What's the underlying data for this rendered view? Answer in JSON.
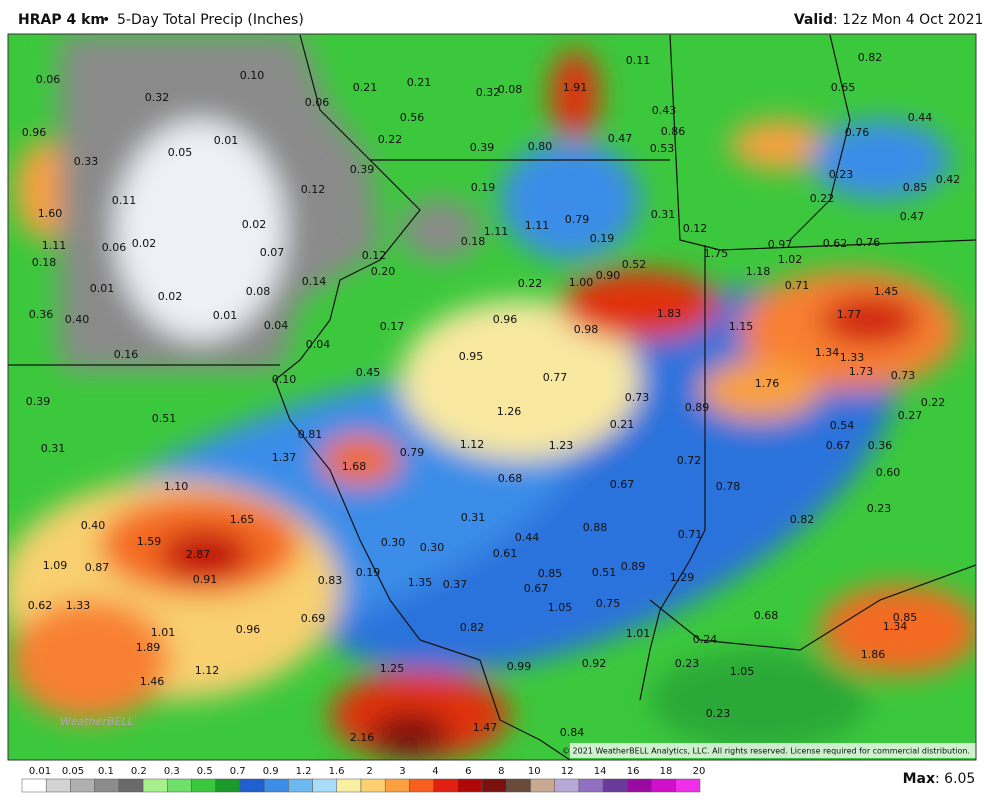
{
  "header": {
    "model": "HRAP 4 km",
    "separator": "•",
    "product": "5-Day Total Precip (Inches)",
    "valid_label": "Valid",
    "valid_time": ": 12z Mon 4 Oct 2021"
  },
  "map": {
    "logo": "WeatherBELL",
    "copyright": "© 2021 WeatherBELL Analytics, LLC. All rights reserved. License required for commercial distribution.",
    "labels": [
      "0.06",
      "0.10",
      "0.32",
      "0.21",
      "0.21",
      "0.32",
      "0.08",
      "1.91",
      "0.11",
      "0.82",
      "0.65",
      "0.06",
      "0.96",
      "0.56",
      "0.22",
      "0.39",
      "0.80",
      "0.47",
      "0.43",
      "0.86",
      "0.53",
      "0.76",
      "0.44",
      "0.01",
      "0.05",
      "0.33",
      "0.39",
      "0.12",
      "0.19",
      "0.23",
      "0.85",
      "0.42",
      "0.22",
      "0.47",
      "0.11",
      "1.60",
      "0.02",
      "1.11",
      "0.79",
      "0.31",
      "0.12",
      "1.11",
      "0.18",
      "0.19",
      "0.06",
      "0.02",
      "1.11",
      "0.07",
      "0.12",
      "0.97",
      "0.62",
      "0.76",
      "1.75",
      "1.02",
      "0.18",
      "0.20",
      "0.52",
      "0.90",
      "1.18",
      "0.01",
      "0.14",
      "0.22",
      "1.00",
      "0.71",
      "1.45",
      "0.02",
      "0.08",
      "0.36",
      "0.40",
      "0.01",
      "0.04",
      "0.17",
      "0.96",
      "0.98",
      "1.83",
      "1.15",
      "1.77",
      "0.04",
      "0.16",
      "0.95",
      "1.34",
      "1.33",
      "1.73",
      "0.45",
      "0.10",
      "0.77",
      "1.76",
      "0.73",
      "0.39",
      "0.73",
      "0.89",
      "0.22",
      "0.51",
      "1.26",
      "0.21",
      "0.27",
      "0.54",
      "0.81",
      "0.31",
      "1.12",
      "1.23",
      "0.67",
      "0.36",
      "1.37",
      "1.68",
      "0.79",
      "0.72",
      "0.68",
      "0.67",
      "0.78",
      "0.60",
      "1.10",
      "0.23",
      "1.65",
      "0.31",
      "0.82",
      "0.40",
      "0.88",
      "0.71",
      "1.59",
      "0.30",
      "0.30",
      "0.44",
      "2.87",
      "0.61",
      "1.09",
      "0.87",
      "0.19",
      "0.85",
      "0.51",
      "0.89",
      "0.91",
      "0.83",
      "1.35",
      "0.37",
      "0.67",
      "1.29",
      "0.62",
      "1.33",
      "1.05",
      "0.75",
      "0.69",
      "0.68",
      "0.85",
      "1.34",
      "0.96",
      "1.01",
      "0.82",
      "1.01",
      "0.24",
      "1.89",
      "0.99",
      "0.92",
      "0.23",
      "1.05",
      "1.86",
      "1.25",
      "1.12",
      "1.46",
      "0.23",
      "1.47",
      "0.84",
      "2.16"
    ]
  },
  "legend": {
    "ticks": [
      "0.01",
      "0.05",
      "0.1",
      "0.2",
      "0.3",
      "0.5",
      "0.7",
      "0.9",
      "1.2",
      "1.6",
      "2",
      "3",
      "4",
      "6",
      "8",
      "10",
      "12",
      "14",
      "16",
      "18",
      "20"
    ],
    "max_label": "Max",
    "max_value": ": 6.05"
  }
}
